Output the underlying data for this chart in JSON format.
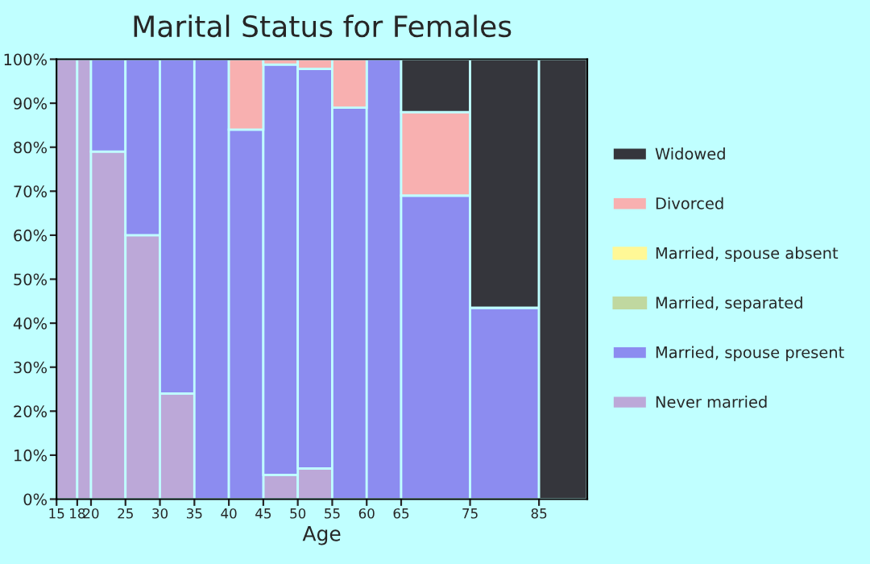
{
  "chart_data": {
    "type": "bar",
    "title": "Marital Status for Females",
    "xlabel": "Age",
    "stacked": true,
    "x": [
      16.5,
      19,
      22.5,
      27.5,
      32.5,
      37.5,
      42.5,
      47.5,
      52.5,
      57.5,
      62.5,
      70,
      80,
      88.5
    ],
    "series": [
      {
        "name": "Never married",
        "color": "#bca8d8",
        "values": [
          100,
          100,
          79,
          60,
          24,
          0,
          0,
          5.5,
          7,
          0,
          0,
          0,
          0,
          0
        ]
      },
      {
        "name": "Married, spouse present",
        "color": "#8c8cf0",
        "values": [
          0,
          0,
          21,
          40,
          76,
          100,
          84,
          93.3,
          90.8,
          89,
          100,
          69,
          43.5,
          0
        ]
      },
      {
        "name": "Married, separated",
        "color": "#c0d8a0",
        "values": [
          0,
          0,
          0,
          0,
          0,
          0,
          0,
          0,
          0,
          0,
          0,
          0,
          0,
          0
        ]
      },
      {
        "name": "Married, spouse absent",
        "color": "#fff896",
        "values": [
          0,
          0,
          0,
          0,
          0,
          0,
          0,
          0,
          0,
          0,
          0,
          0,
          0,
          0
        ]
      },
      {
        "name": "Divorced",
        "color": "#f8b0b0",
        "values": [
          0,
          0,
          0,
          0,
          0,
          0,
          16,
          1.2,
          2.2,
          11,
          0,
          19,
          0,
          0
        ]
      },
      {
        "name": "Widowed",
        "color": "#35363c",
        "values": [
          0,
          0,
          0,
          0,
          0,
          0,
          0,
          0,
          0,
          0,
          0,
          12,
          56.5,
          100
        ]
      }
    ],
    "xlim": [
      15,
      92
    ],
    "xticks": [
      15,
      18,
      20,
      25,
      30,
      35,
      40,
      45,
      50,
      55,
      60,
      65,
      75,
      85
    ],
    "ylim": [
      0,
      100
    ],
    "yticks": [
      {
        "value": 0,
        "label": "0%"
      },
      {
        "value": 10,
        "label": "10%"
      },
      {
        "value": 20,
        "label": "20%"
      },
      {
        "value": 30,
        "label": "30%"
      },
      {
        "value": 40,
        "label": "40%"
      },
      {
        "value": 50,
        "label": "50%"
      },
      {
        "value": 60,
        "label": "60%"
      },
      {
        "value": 70,
        "label": "70%"
      },
      {
        "value": 80,
        "label": "80%"
      },
      {
        "value": 90,
        "label": "90%"
      },
      {
        "value": 100,
        "label": "100%"
      }
    ],
    "legend": "right"
  }
}
